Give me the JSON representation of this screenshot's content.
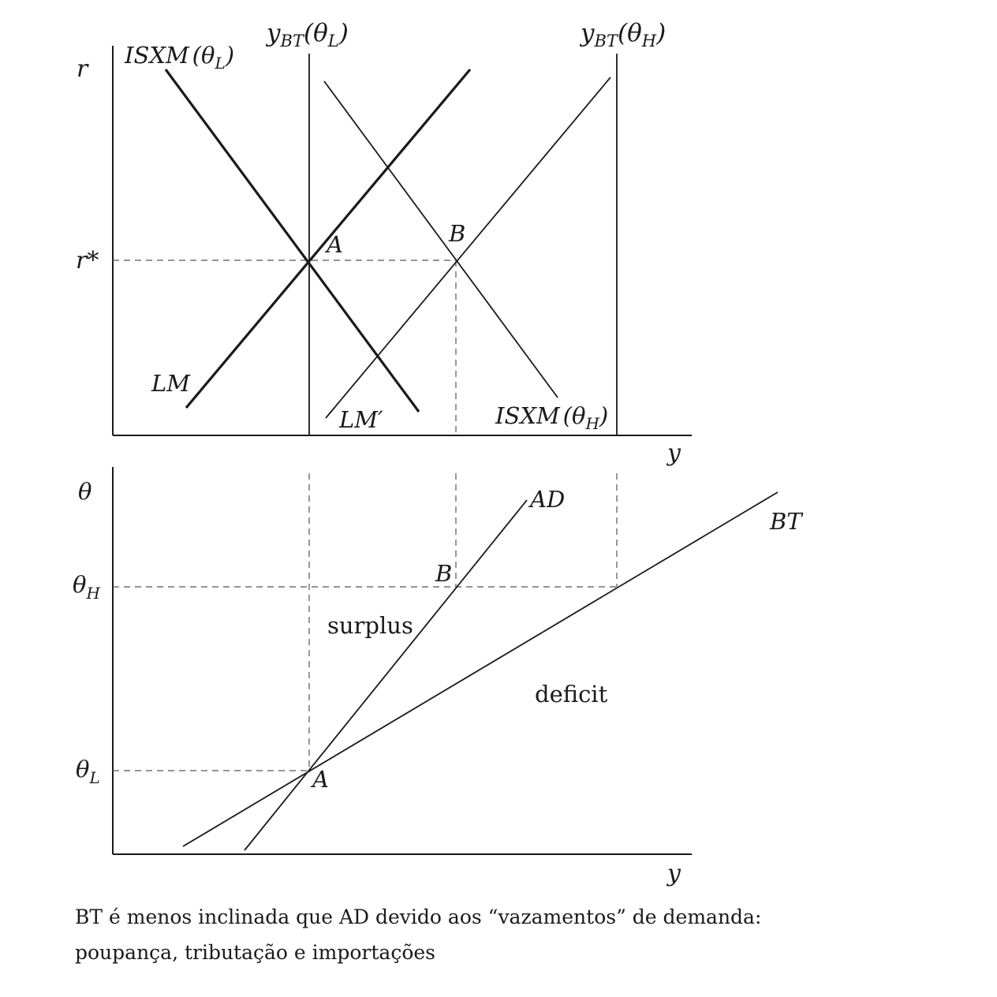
{
  "top_panel": {
    "y_axis_label": "r",
    "x_axis_label": "y",
    "r_star_label": "r*",
    "ybt_low_label": {
      "main": "y",
      "sub": "BT",
      "arg": "(θ",
      "arg_sub": "L",
      "close": ")"
    },
    "ybt_high_label": {
      "main": "y",
      "sub": "BT",
      "arg": "(θ",
      "arg_sub": "H",
      "close": ")"
    },
    "isxm_low_label": {
      "main": "ISXM",
      "arg": "(θ",
      "arg_sub": "L",
      "close": ")"
    },
    "isxm_high_label": {
      "main": "ISXM",
      "arg": "(θ",
      "arg_sub": "H",
      "close": ")"
    },
    "lm_label": "LM",
    "lm_prime_label": "LM′",
    "point_a_label": "A",
    "point_b_label": "B"
  },
  "bottom_panel": {
    "y_axis_label": "θ",
    "x_axis_label": "y",
    "theta_high_label": {
      "main": "θ",
      "sub": "H"
    },
    "theta_low_label": {
      "main": "θ",
      "sub": "L"
    },
    "ad_label": "AD",
    "bt_label": "BT",
    "point_a_label": "A",
    "point_b_label": "B",
    "surplus_label": "surplus",
    "deficit_label": "deficit"
  },
  "caption": {
    "line1": "BT é menos inclinada que AD devido aos “vazamentos” de demanda:",
    "line2": "poupança, tributação e importações"
  }
}
